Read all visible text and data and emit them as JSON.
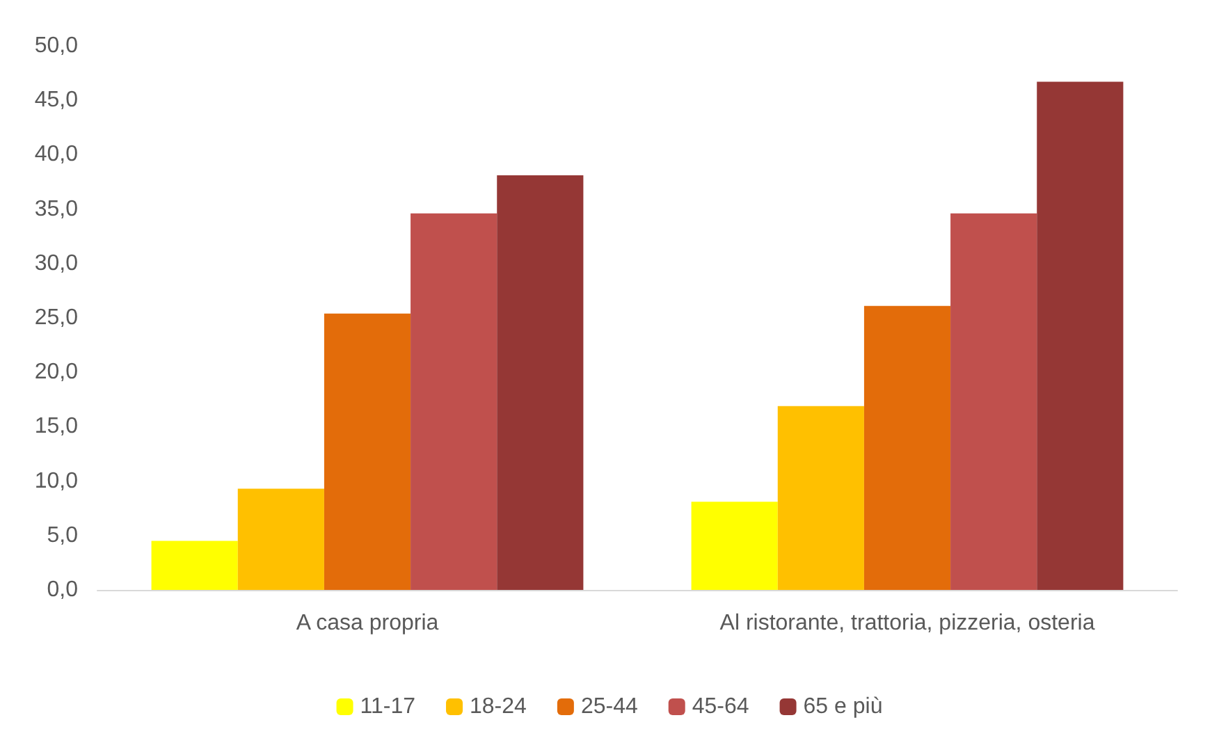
{
  "chart_data": {
    "type": "bar",
    "categories": [
      "A casa propria",
      "Al ristorante, trattoria, pizzeria, osteria"
    ],
    "series": [
      {
        "name": "11-17",
        "color": "#ffff00",
        "values": [
          4.5,
          8.1
        ]
      },
      {
        "name": "18-24",
        "color": "#ffc000",
        "values": [
          9.3,
          16.9
        ]
      },
      {
        "name": "25-44",
        "color": "#e36c0a",
        "values": [
          25.4,
          26.1
        ]
      },
      {
        "name": "45-64",
        "color": "#c0504d",
        "values": [
          34.6,
          34.6
        ]
      },
      {
        "name": "65 e più",
        "color": "#953735",
        "values": [
          38.1,
          46.7
        ]
      }
    ],
    "ylim": [
      0,
      50
    ],
    "yticks": [
      {
        "value": 0,
        "label": "0,0"
      },
      {
        "value": 5,
        "label": "5,0"
      },
      {
        "value": 10,
        "label": "10,0"
      },
      {
        "value": 15,
        "label": "15,0"
      },
      {
        "value": 20,
        "label": "20,0"
      },
      {
        "value": 25,
        "label": "25,0"
      },
      {
        "value": 30,
        "label": "30,0"
      },
      {
        "value": 35,
        "label": "35,0"
      },
      {
        "value": 40,
        "label": "40,0"
      },
      {
        "value": 45,
        "label": "45,0"
      },
      {
        "value": 50,
        "label": "50,0"
      }
    ],
    "grid": false,
    "legend": "bottom"
  }
}
